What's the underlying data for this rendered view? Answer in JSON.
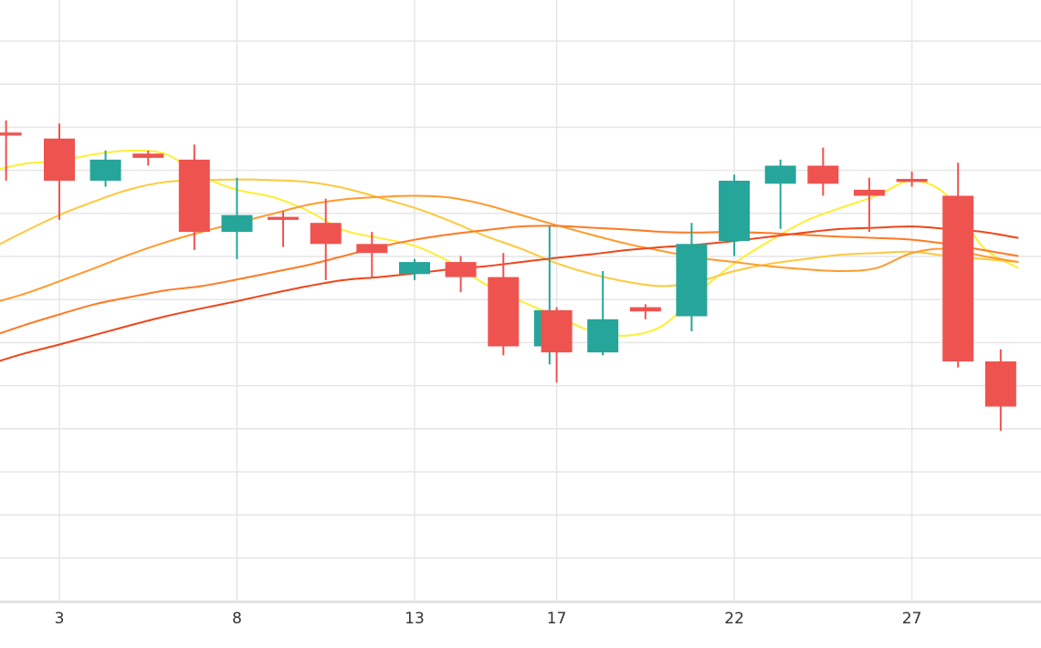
{
  "chart_data": {
    "type": "candlestick",
    "x_ticks": [
      "3",
      "8",
      "13",
      "17",
      "22",
      "27"
    ],
    "y_range": [
      0,
      100
    ],
    "grid": true,
    "colors": {
      "up": "#26a69a",
      "down": "#ef5350",
      "gridline": "#e6e6e6",
      "ma_lines": [
        "#ffee33",
        "#ffc83d",
        "#ff9a2e",
        "#ff5a1f",
        "#f0451a"
      ]
    },
    "candles": [
      {
        "x": 1.5,
        "open": 78.0,
        "close": 77.5,
        "high": 80.0,
        "low": 70.0
      },
      {
        "x": 3.0,
        "open": 77.0,
        "close": 70.0,
        "high": 79.5,
        "low": 63.5
      },
      {
        "x": 4.3,
        "open": 70.0,
        "close": 73.5,
        "high": 75.0,
        "low": 69.0
      },
      {
        "x": 5.5,
        "open": 74.5,
        "close": 73.8,
        "high": 75.0,
        "low": 72.5
      },
      {
        "x": 6.8,
        "open": 73.5,
        "close": 61.5,
        "high": 76.0,
        "low": 58.5
      },
      {
        "x": 8.0,
        "open": 61.5,
        "close": 64.3,
        "high": 70.5,
        "low": 57.0
      },
      {
        "x": 9.3,
        "open": 64.0,
        "close": 63.5,
        "high": 65.0,
        "low": 59.0
      },
      {
        "x": 10.5,
        "open": 63.0,
        "close": 59.5,
        "high": 67.0,
        "low": 53.5
      },
      {
        "x": 11.8,
        "open": 59.5,
        "close": 58.0,
        "high": 61.5,
        "low": 54.0
      },
      {
        "x": 13.0,
        "open": 54.5,
        "close": 56.5,
        "high": 57.0,
        "low": 53.5
      },
      {
        "x": 14.3,
        "open": 56.5,
        "close": 54.0,
        "high": 57.5,
        "low": 51.5
      },
      {
        "x": 15.5,
        "open": 54.0,
        "close": 42.5,
        "high": 58.0,
        "low": 41.0
      },
      {
        "x": 16.8,
        "open": 42.5,
        "close": 48.5,
        "high": 62.5,
        "low": 39.5
      },
      {
        "x": 17.0,
        "open": 48.5,
        "close": 41.5,
        "high": 49.0,
        "low": 36.5
      },
      {
        "x": 18.3,
        "open": 41.5,
        "close": 47.0,
        "high": 55.0,
        "low": 41.0
      },
      {
        "x": 19.5,
        "open": 49.0,
        "close": 48.3,
        "high": 49.5,
        "low": 47.0
      },
      {
        "x": 20.8,
        "open": 47.5,
        "close": 59.5,
        "high": 63.0,
        "low": 45.0
      },
      {
        "x": 22.0,
        "open": 60.0,
        "close": 70.0,
        "high": 71.0,
        "low": 57.5
      },
      {
        "x": 23.3,
        "open": 69.5,
        "close": 72.5,
        "high": 73.5,
        "low": 62.0
      },
      {
        "x": 24.5,
        "open": 72.5,
        "close": 69.5,
        "high": 75.5,
        "low": 67.5
      },
      {
        "x": 25.8,
        "open": 68.5,
        "close": 67.5,
        "high": 70.5,
        "low": 61.5
      },
      {
        "x": 27.0,
        "open": 70.3,
        "close": 69.8,
        "high": 71.5,
        "low": 69.0
      },
      {
        "x": 28.3,
        "open": 67.5,
        "close": 40.0,
        "high": 73.0,
        "low": 39.0
      },
      {
        "x": 29.5,
        "open": 40.0,
        "close": 32.5,
        "high": 42.0,
        "low": 28.5
      }
    ],
    "moving_averages": [
      {
        "color": "#ffee33",
        "points": [
          [
            1.0,
            71.5
          ],
          [
            2.0,
            72.8
          ],
          [
            3.0,
            73.3
          ],
          [
            4.0,
            74.4
          ],
          [
            5.0,
            75.0
          ],
          [
            6.0,
            74.4
          ],
          [
            7.0,
            70.8
          ],
          [
            8.0,
            68.5
          ],
          [
            9.0,
            67.3
          ],
          [
            10.0,
            65.0
          ],
          [
            11.0,
            61.8
          ],
          [
            12.0,
            60.5
          ],
          [
            13.0,
            59.2
          ],
          [
            14.0,
            56.5
          ],
          [
            15.0,
            52.8
          ],
          [
            16.0,
            50.0
          ],
          [
            17.0,
            47.5
          ],
          [
            18.0,
            45.0
          ],
          [
            19.0,
            44.3
          ],
          [
            20.0,
            46.0
          ],
          [
            21.0,
            51.5
          ],
          [
            22.0,
            56.3
          ],
          [
            23.0,
            60.0
          ],
          [
            24.0,
            63.3
          ],
          [
            25.0,
            65.5
          ],
          [
            26.0,
            67.5
          ],
          [
            27.0,
            70.0
          ],
          [
            28.0,
            67.5
          ],
          [
            29.0,
            59.0
          ],
          [
            30.0,
            55.5
          ]
        ]
      },
      {
        "color": "#ffc83d",
        "points": [
          [
            1.0,
            58.5
          ],
          [
            2.0,
            61.5
          ],
          [
            3.0,
            64.3
          ],
          [
            4.0,
            66.6
          ],
          [
            5.0,
            68.6
          ],
          [
            6.0,
            69.8
          ],
          [
            7.0,
            70.1
          ],
          [
            8.0,
            70.2
          ],
          [
            9.0,
            70.1
          ],
          [
            10.0,
            69.8
          ],
          [
            11.0,
            68.8
          ],
          [
            12.0,
            67.2
          ],
          [
            13.0,
            65.5
          ],
          [
            14.0,
            63.3
          ],
          [
            15.0,
            60.8
          ],
          [
            16.0,
            58.7
          ],
          [
            17.0,
            56.3
          ],
          [
            18.0,
            54.5
          ],
          [
            19.0,
            53.2
          ],
          [
            20.0,
            52.5
          ],
          [
            21.0,
            53.3
          ],
          [
            22.0,
            55.0
          ],
          [
            23.0,
            56.2
          ],
          [
            24.0,
            57.0
          ],
          [
            25.0,
            57.7
          ],
          [
            26.0,
            58.0
          ],
          [
            27.0,
            58.2
          ],
          [
            28.0,
            57.5
          ],
          [
            29.0,
            57.0
          ],
          [
            30.0,
            56.5
          ]
        ]
      },
      {
        "color": "#ff9a2e",
        "points": [
          [
            1.0,
            49.5
          ],
          [
            2.0,
            51.2
          ],
          [
            3.0,
            53.3
          ],
          [
            4.0,
            55.5
          ],
          [
            5.0,
            57.8
          ],
          [
            6.0,
            59.8
          ],
          [
            7.0,
            61.5
          ],
          [
            8.0,
            63.0
          ],
          [
            9.0,
            64.5
          ],
          [
            10.0,
            66.0
          ],
          [
            11.0,
            66.9
          ],
          [
            12.0,
            67.3
          ],
          [
            13.0,
            67.5
          ],
          [
            14.0,
            67.2
          ],
          [
            15.0,
            66.0
          ],
          [
            16.0,
            64.3
          ],
          [
            17.0,
            62.6
          ],
          [
            18.0,
            61.0
          ],
          [
            19.0,
            59.5
          ],
          [
            20.0,
            58.3
          ],
          [
            21.0,
            57.2
          ],
          [
            22.0,
            56.5
          ],
          [
            23.0,
            55.8
          ],
          [
            24.0,
            55.3
          ],
          [
            25.0,
            55.0
          ],
          [
            26.0,
            55.5
          ],
          [
            27.0,
            58.0
          ],
          [
            28.0,
            58.7
          ],
          [
            29.0,
            57.5
          ],
          [
            30.0,
            56.5
          ]
        ]
      },
      {
        "color": "#ff7a24",
        "points": [
          [
            1.0,
            44.0
          ],
          [
            2.0,
            46.0
          ],
          [
            3.0,
            47.8
          ],
          [
            4.0,
            49.5
          ],
          [
            5.0,
            50.7
          ],
          [
            6.0,
            51.8
          ],
          [
            7.0,
            52.5
          ],
          [
            8.0,
            53.6
          ],
          [
            9.0,
            54.8
          ],
          [
            10.0,
            56.0
          ],
          [
            11.0,
            57.5
          ],
          [
            12.0,
            59.0
          ],
          [
            13.0,
            60.2
          ],
          [
            14.0,
            61.1
          ],
          [
            15.0,
            61.8
          ],
          [
            16.0,
            62.4
          ],
          [
            17.0,
            62.5
          ],
          [
            18.0,
            62.2
          ],
          [
            19.0,
            61.9
          ],
          [
            20.0,
            61.5
          ],
          [
            21.0,
            61.4
          ],
          [
            22.0,
            61.5
          ],
          [
            23.0,
            61.3
          ],
          [
            24.0,
            61.0
          ],
          [
            25.0,
            60.7
          ],
          [
            26.0,
            60.5
          ],
          [
            27.0,
            60.2
          ],
          [
            28.0,
            59.5
          ],
          [
            29.0,
            58.5
          ],
          [
            30.0,
            57.5
          ]
        ]
      },
      {
        "color": "#f0451a",
        "points": [
          [
            1.0,
            39.5
          ],
          [
            2.0,
            41.3
          ],
          [
            3.0,
            42.8
          ],
          [
            4.0,
            44.4
          ],
          [
            5.0,
            46.0
          ],
          [
            6.0,
            47.5
          ],
          [
            7.0,
            48.8
          ],
          [
            8.0,
            50.0
          ],
          [
            9.0,
            51.3
          ],
          [
            10.0,
            52.5
          ],
          [
            11.0,
            53.5
          ],
          [
            12.0,
            54.0
          ],
          [
            13.0,
            54.6
          ],
          [
            14.0,
            55.3
          ],
          [
            15.0,
            55.8
          ],
          [
            16.0,
            56.5
          ],
          [
            17.0,
            57.2
          ],
          [
            18.0,
            57.8
          ],
          [
            19.0,
            58.5
          ],
          [
            20.0,
            59.0
          ],
          [
            21.0,
            59.4
          ],
          [
            22.0,
            60.0
          ],
          [
            23.0,
            60.7
          ],
          [
            24.0,
            61.4
          ],
          [
            25.0,
            62.0
          ],
          [
            26.0,
            62.2
          ],
          [
            27.0,
            62.4
          ],
          [
            28.0,
            62.0
          ],
          [
            29.0,
            61.5
          ],
          [
            30.0,
            60.5
          ]
        ]
      }
    ]
  }
}
